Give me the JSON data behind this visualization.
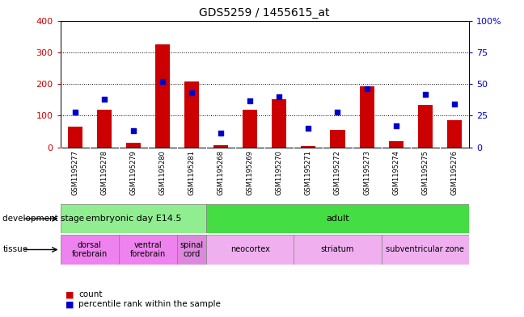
{
  "title": "GDS5259 / 1455615_at",
  "samples": [
    "GSM1195277",
    "GSM1195278",
    "GSM1195279",
    "GSM1195280",
    "GSM1195281",
    "GSM1195268",
    "GSM1195269",
    "GSM1195270",
    "GSM1195271",
    "GSM1195272",
    "GSM1195273",
    "GSM1195274",
    "GSM1195275",
    "GSM1195276"
  ],
  "counts": [
    65,
    120,
    15,
    325,
    207,
    8,
    120,
    152,
    5,
    55,
    192,
    20,
    133,
    87
  ],
  "percentiles": [
    28,
    38,
    13,
    52,
    43,
    11,
    37,
    40,
    15,
    28,
    46,
    17,
    42,
    34
  ],
  "count_color": "#cc0000",
  "percentile_color": "#0000cc",
  "ylim_left": [
    0,
    400
  ],
  "ylim_right": [
    0,
    100
  ],
  "yticks_left": [
    0,
    100,
    200,
    300,
    400
  ],
  "yticks_right": [
    0,
    25,
    50,
    75,
    100
  ],
  "dev_stage_groups": [
    {
      "label": "embryonic day E14.5",
      "start": 0,
      "end": 5,
      "color": "#90ee90"
    },
    {
      "label": "adult",
      "start": 5,
      "end": 14,
      "color": "#44dd44"
    }
  ],
  "tissue_groups": [
    {
      "label": "dorsal\nforebrain",
      "start": 0,
      "end": 2,
      "color": "#ee82ee"
    },
    {
      "label": "ventral\nforebrain",
      "start": 2,
      "end": 4,
      "color": "#ee82ee"
    },
    {
      "label": "spinal\ncord",
      "start": 4,
      "end": 5,
      "color": "#dd88dd"
    },
    {
      "label": "neocortex",
      "start": 5,
      "end": 8,
      "color": "#f0b0f0"
    },
    {
      "label": "striatum",
      "start": 8,
      "end": 11,
      "color": "#f0b0f0"
    },
    {
      "label": "subventricular zone",
      "start": 11,
      "end": 14,
      "color": "#f0b0f0"
    }
  ],
  "background_color": "#ffffff",
  "gray_bg": "#c8c8c8",
  "legend_count_label": "count",
  "legend_pct_label": "percentile rank within the sample",
  "fig_width": 6.48,
  "fig_height": 3.93
}
